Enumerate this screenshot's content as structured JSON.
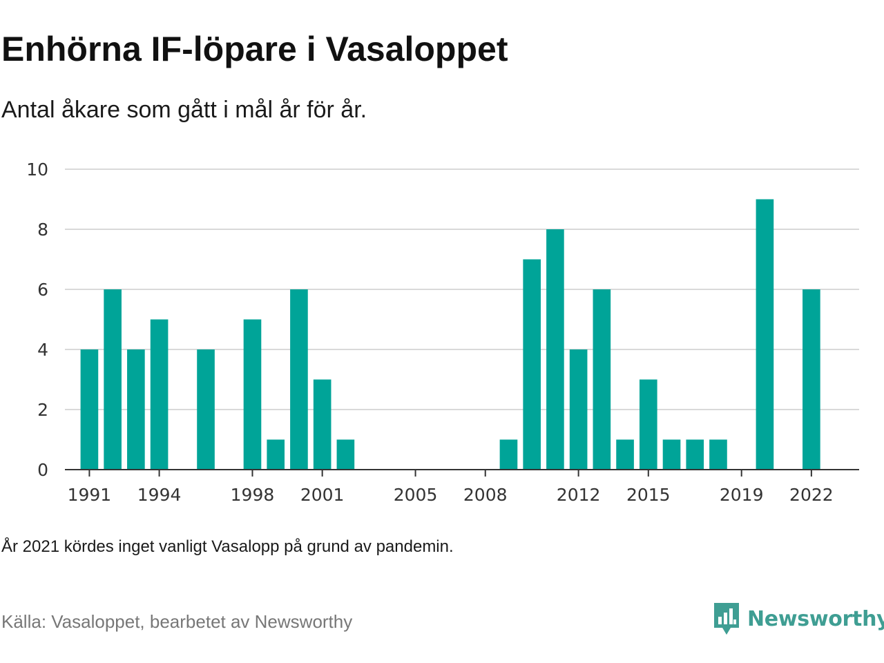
{
  "header": {
    "title": "Enhörna IF-löpare i Vasaloppet",
    "subtitle": "Antal åkare som gått i mål år för år."
  },
  "footer": {
    "note": "År 2021 kördes inget vanligt Vasalopp på grund av pandemin.",
    "source": "Källa: Vasaloppet, bearbetet av Newsworthy",
    "logo_text": "Newsworthy"
  },
  "colors": {
    "bar": "#00a498",
    "grid": "#d9d9d9",
    "axis": "#333333",
    "logo": "#3f9e93"
  },
  "chart_data": {
    "type": "bar",
    "x": [
      1991,
      1992,
      1993,
      1994,
      1995,
      1996,
      1997,
      1998,
      1999,
      2000,
      2001,
      2002,
      2003,
      2004,
      2005,
      2006,
      2007,
      2008,
      2009,
      2010,
      2011,
      2012,
      2013,
      2014,
      2015,
      2016,
      2017,
      2018,
      2019,
      2020,
      2021,
      2022
    ],
    "values": [
      4,
      6,
      4,
      5,
      0,
      4,
      0,
      5,
      1,
      6,
      3,
      1,
      0,
      0,
      0,
      0,
      0,
      0,
      1,
      7,
      8,
      4,
      6,
      1,
      3,
      1,
      1,
      1,
      0,
      9,
      0,
      6
    ],
    "x_ticks": [
      1991,
      1994,
      1998,
      2001,
      2005,
      2008,
      2012,
      2015,
      2019,
      2022
    ],
    "y_ticks": [
      0,
      2,
      4,
      6,
      8,
      10
    ],
    "ylim": [
      0,
      10
    ],
    "xlim": [
      1989.95,
      2024.05
    ],
    "grid": true
  }
}
